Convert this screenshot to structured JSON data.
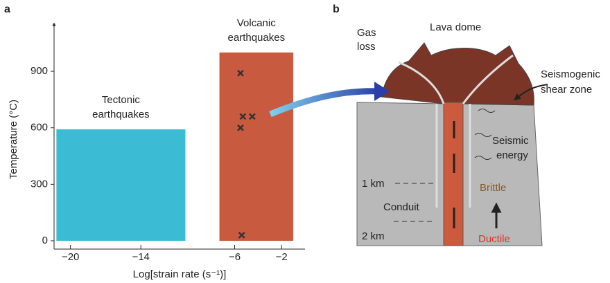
{
  "chart_data": {
    "type": "range",
    "panel_label": "a",
    "xlabel": "Log[strain rate (s⁻¹)]",
    "ylabel": "Temperature (°C)",
    "xlim": [
      -21.4,
      0
    ],
    "ylim": [
      0,
      1150
    ],
    "xticks": [
      {
        "value": -20,
        "label": "−20"
      },
      {
        "value": -14,
        "label": "−14"
      },
      {
        "value": -6,
        "label": "−6"
      },
      {
        "value": -2,
        "label": "−2"
      }
    ],
    "yticks": [
      0,
      300,
      600,
      900
    ],
    "series": [
      {
        "name": [
          "Tectonic",
          "earthquakes"
        ],
        "color": "#3cbbd5",
        "xrange": [
          -21.2,
          -10.2
        ],
        "value": 592
      },
      {
        "name": [
          "Volcanic",
          "earthquakes"
        ],
        "color": "#c85a40",
        "xrange": [
          -7.3,
          -1.0
        ],
        "value": 1000
      }
    ],
    "points": {
      "marker": "x",
      "color": "#333333",
      "x": [
        -5.5,
        -5.3,
        -4.5,
        -5.5,
        -5.4
      ],
      "y": [
        890,
        660,
        660,
        600,
        30
      ]
    }
  },
  "diagram": {
    "panel_label": "b",
    "lava_dome": "Lava dome",
    "gas_loss": [
      "Gas",
      "loss"
    ],
    "shear_zone": [
      "Seismogenic",
      "shear zone"
    ],
    "seismic_energy": [
      "Seismic",
      "energy"
    ],
    "depth_1": "1 km",
    "depth_2": "2 km",
    "conduit": "Conduit",
    "brittle": "Brittle",
    "ductile": "Ductile"
  }
}
